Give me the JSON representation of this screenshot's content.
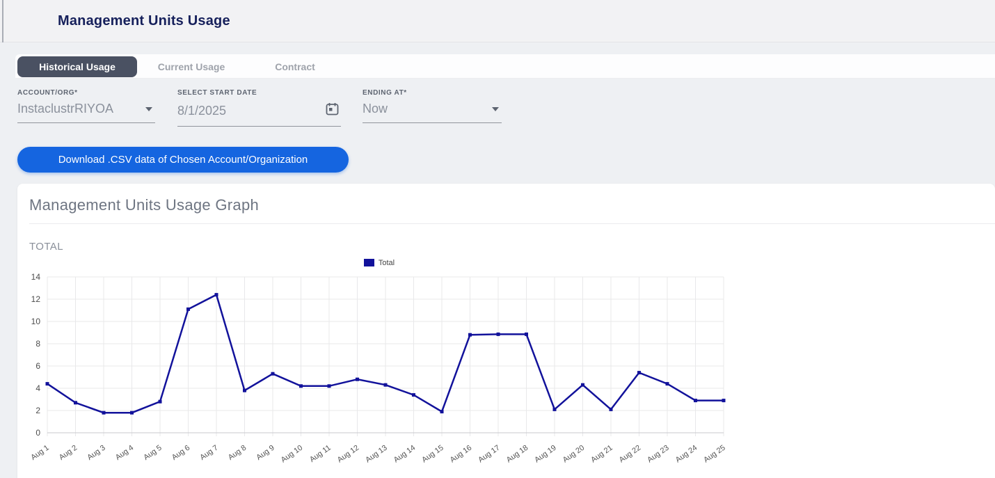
{
  "page": {
    "title": "Management Units Usage"
  },
  "tabs": [
    {
      "label": "Historical Usage",
      "active": true
    },
    {
      "label": "Current Usage",
      "active": false
    },
    {
      "label": "Contract",
      "active": false
    }
  ],
  "filters": {
    "account": {
      "label": "ACCOUNT/ORG*",
      "value": "InstaclustrRIYOA"
    },
    "start_date": {
      "label": "SELECT START DATE",
      "value": "8/1/2025",
      "icon": "calendar-icon"
    },
    "ending_at": {
      "label": "ENDING AT*",
      "value": "Now"
    }
  },
  "download_button": {
    "label": "Download .CSV data of Chosen Account/Organization"
  },
  "graph_card": {
    "title": "Management Units Usage Graph",
    "section_label": "TOTAL"
  },
  "chart_data": {
    "type": "line",
    "title": "TOTAL",
    "categories": [
      "Aug 1",
      "Aug 2",
      "Aug 3",
      "Aug 4",
      "Aug 5",
      "Aug 6",
      "Aug 7",
      "Aug 8",
      "Aug 9",
      "Aug 10",
      "Aug 11",
      "Aug 12",
      "Aug 13",
      "Aug 14",
      "Aug 15",
      "Aug 16",
      "Aug 17",
      "Aug 18",
      "Aug 19",
      "Aug 20",
      "Aug 21",
      "Aug 22",
      "Aug 23",
      "Aug 24",
      "Aug 25"
    ],
    "series": [
      {
        "name": "Total",
        "color": "#12129b",
        "values": [
          4.4,
          2.7,
          1.8,
          1.8,
          2.8,
          11.1,
          12.4,
          3.8,
          5.3,
          4.2,
          4.2,
          4.8,
          4.3,
          3.4,
          1.9,
          8.8,
          8.85,
          8.85,
          2.1,
          4.3,
          2.1,
          5.4,
          4.4,
          2.9,
          2.9
        ]
      }
    ],
    "xlabel": "",
    "ylabel": "",
    "ylim": [
      0,
      14
    ],
    "ytick_step": 2,
    "grid": true,
    "legend_position": "top-center"
  },
  "colors": {
    "accent_blue": "#1565e0",
    "line_navy": "#12129b",
    "title_navy": "#16205b",
    "active_tab_bg": "#4a5162"
  }
}
